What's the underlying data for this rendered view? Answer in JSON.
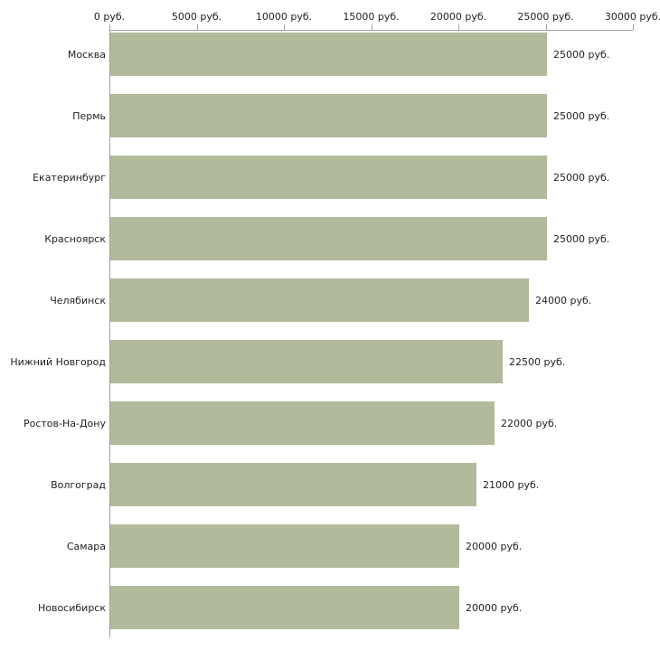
{
  "chart_data": {
    "type": "bar",
    "orientation": "horizontal",
    "title": "",
    "xlabel": "",
    "ylabel": "",
    "unit": "руб.",
    "categories": [
      "Москва",
      "Пермь",
      "Екатеринбург",
      "Красноярск",
      "Челябинск",
      "Нижний Новгород",
      "Ростов-На-Дону",
      "Волгоград",
      "Самара",
      "Новосибирск"
    ],
    "values": [
      25000,
      25000,
      25000,
      25000,
      24000,
      22500,
      22000,
      21000,
      20000,
      20000
    ],
    "value_labels": [
      "25000 руб.",
      "25000 руб.",
      "25000 руб.",
      "25000 руб.",
      "24000 руб.",
      "22500 руб.",
      "22000 руб.",
      "21000 руб.",
      "20000 руб.",
      "20000 руб."
    ],
    "x_ticks": [
      {
        "value": 0,
        "label": "0 руб."
      },
      {
        "value": 5000,
        "label": "5000 руб."
      },
      {
        "value": 10000,
        "label": "10000 руб."
      },
      {
        "value": 15000,
        "label": "15000 руб."
      },
      {
        "value": 20000,
        "label": "20000 руб."
      },
      {
        "value": 25000,
        "label": "25000 руб."
      },
      {
        "value": 30000,
        "label": "30000 руб."
      }
    ],
    "xlim": [
      0,
      30000
    ],
    "grid": false,
    "legend": "none",
    "bar_color": "#b2ba9c",
    "axis_color": "#a0a0a0",
    "text_color": "#222222"
  }
}
